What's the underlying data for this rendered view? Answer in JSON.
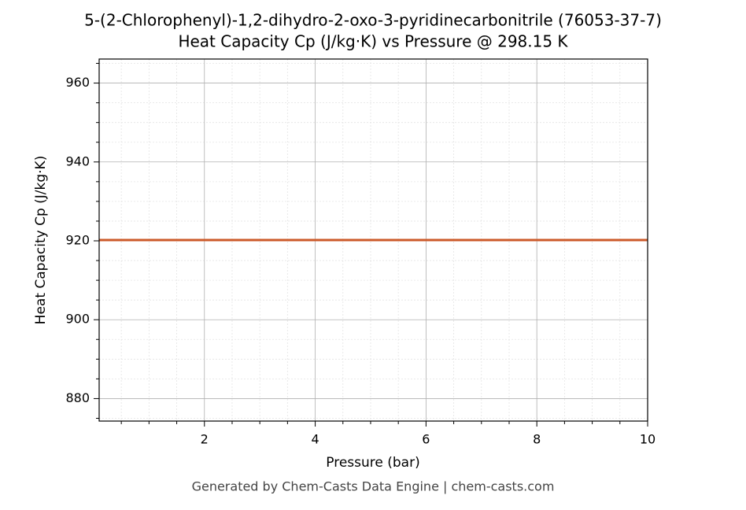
{
  "chart_data": {
    "type": "line",
    "title": "5-(2-Chlorophenyl)-1,2-dihydro-2-oxo-3-pyridinecarbonitrile (76053-37-7)",
    "subtitle": "Heat Capacity Cp (J/kg·K) vs Pressure @ 298.15 K",
    "x_label": "Pressure (bar)",
    "y_label": "Heat Capacity Cp (J/kg·K)",
    "footer": "Generated by Chem-Casts Data Engine | chem-casts.com",
    "x": [
      0.1,
      10
    ],
    "series": [
      {
        "name": "Heat Capacity Cp",
        "color": "#cc5a2a",
        "values": [
          920.2,
          920.2
        ]
      }
    ],
    "xlim": [
      0.1,
      10
    ],
    "xticks": [
      2,
      4,
      6,
      8,
      10
    ],
    "xminorticks": [
      0.5,
      1,
      1.5,
      2.5,
      3,
      3.5,
      4.5,
      5,
      5.5,
      6.5,
      7,
      7.5,
      8.5,
      9,
      9.5
    ],
    "ylim": [
      874.3,
      966.1
    ],
    "yticks": [
      880,
      900,
      920,
      940,
      960
    ],
    "yminorticks": [
      875,
      885,
      890,
      895,
      905,
      910,
      915,
      925,
      930,
      935,
      945,
      950,
      955,
      965
    ],
    "grid": true
  }
}
